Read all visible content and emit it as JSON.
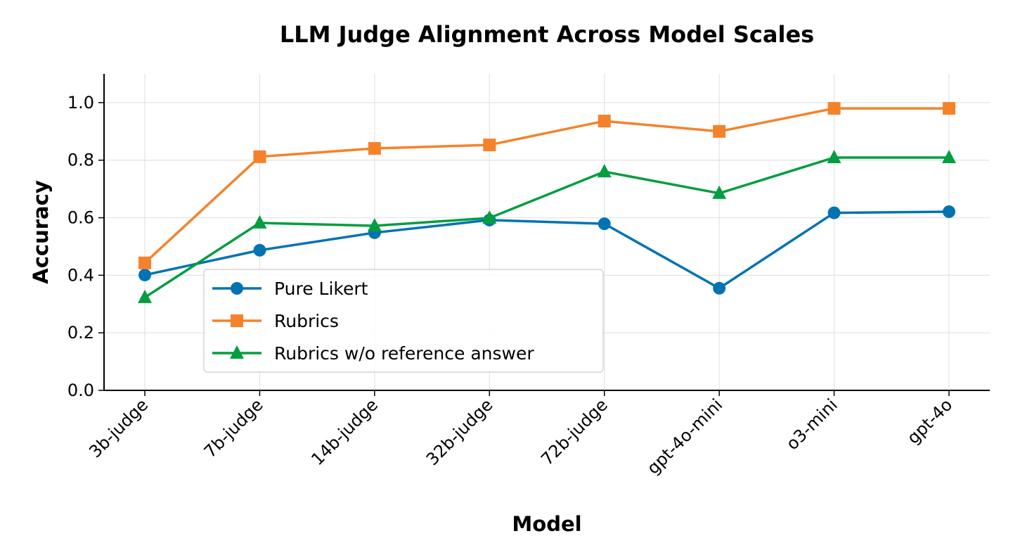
{
  "chart_data": {
    "type": "line",
    "title": "LLM Judge Alignment Across Model Scales",
    "xlabel": "Model",
    "ylabel": "Accuracy",
    "categories": [
      "3b-judge",
      "7b-judge",
      "14b-judge",
      "32b-judge",
      "72b-judge",
      "gpt-4o-mini",
      "o3-mini",
      "gpt-4o"
    ],
    "ylim": [
      0,
      1.1
    ],
    "yticks": [
      "0.0",
      "0.2",
      "0.4",
      "0.6",
      "0.8",
      "1.0"
    ],
    "grid": true,
    "legend_position": "lower-left",
    "series": [
      {
        "name": "Pure Likert",
        "color": "#0173b2",
        "marker": "circle",
        "values": [
          0.401,
          0.487,
          0.548,
          0.592,
          0.579,
          0.355,
          0.617,
          0.621
        ]
      },
      {
        "name": "Rubrics",
        "color": "#f5822a",
        "marker": "square",
        "values": [
          0.443,
          0.812,
          0.841,
          0.853,
          0.936,
          0.9,
          0.98,
          0.98
        ]
      },
      {
        "name": "Rubrics w/o reference answer",
        "color": "#029e3f",
        "marker": "triangle",
        "values": [
          0.323,
          0.582,
          0.572,
          0.599,
          0.76,
          0.685,
          0.809,
          0.809
        ]
      }
    ]
  }
}
